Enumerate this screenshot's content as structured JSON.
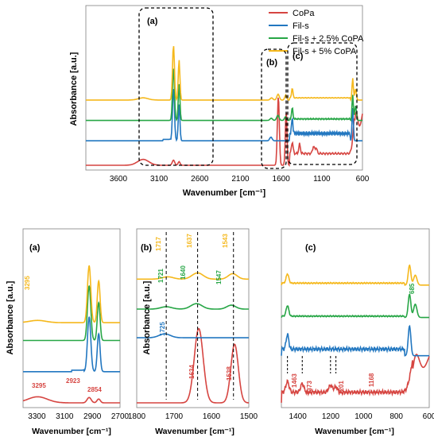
{
  "colors": {
    "CoPa": "#d64541",
    "Fil-s": "#2277c0",
    "Fil-s + 2.5% CoPA": "#27a646",
    "Fil-s + 5% CoPA": "#f5b81c"
  },
  "chart_data": [
    {
      "type": "line",
      "id": "top",
      "xlabel": "Wavenumber [cm⁻¹]",
      "ylabel": "Absorbance [a.u.]",
      "xlim": [
        4000,
        600
      ],
      "xticks": [
        "3600",
        "3100",
        "2600",
        "2100",
        "1600",
        "1100",
        "600"
      ],
      "legend_position": "top-right",
      "series": [
        {
          "name": "CoPa",
          "color": "#d64541",
          "offset": 0
        },
        {
          "name": "Fil-s",
          "color": "#2277c0",
          "offset": 0.3
        },
        {
          "name": "Fil-s + 2.5% CoPA",
          "color": "#27a646",
          "offset": 0.55
        },
        {
          "name": "Fil-s + 5% CoPA",
          "color": "#f5b81c",
          "offset": 0.8
        }
      ],
      "regions": [
        {
          "label": "(a)",
          "x": [
            3400,
            2750
          ]
        },
        {
          "label": "(b)",
          "x": [
            1800,
            1500
          ]
        },
        {
          "label": "(c)",
          "x": [
            1500,
            600
          ]
        }
      ]
    },
    {
      "type": "line",
      "id": "a",
      "title": "(a)",
      "xlabel": "Wavenumber [cm⁻¹]",
      "ylabel": "Absorbance [a.u.]",
      "xlim": [
        3400,
        2700
      ],
      "xticks": [
        "3300",
        "3100",
        "2900",
        "2700"
      ],
      "annotations": [
        {
          "text": "3295",
          "x": 3295,
          "series": "Fil-s + 5% CoPA"
        },
        {
          "text": "3295",
          "x": 3295,
          "series": "CoPa"
        },
        {
          "text": "2923",
          "x": 2923,
          "series": "CoPa"
        },
        {
          "text": "2854",
          "x": 2854,
          "series": "CoPa"
        }
      ]
    },
    {
      "type": "line",
      "id": "b",
      "title": "(b)",
      "xlabel": "Wavenumber [cm⁻¹]",
      "ylabel": "Absorbance [a.u.]",
      "xlim": [
        1800,
        1500
      ],
      "xticks": [
        "1800",
        "1700",
        "1600",
        "1500"
      ],
      "annotations": [
        {
          "text": "1717",
          "x": 1717,
          "series": "Fil-s + 5% CoPA"
        },
        {
          "text": "1637",
          "x": 1637,
          "series": "Fil-s + 5% CoPA"
        },
        {
          "text": "1543",
          "x": 1543,
          "series": "Fil-s + 5% CoPA"
        },
        {
          "text": "1721",
          "x": 1721,
          "series": "Fil-s + 2.5% CoPA"
        },
        {
          "text": "1640",
          "x": 1640,
          "series": "Fil-s + 2.5% CoPA"
        },
        {
          "text": "1547",
          "x": 1547,
          "series": "Fil-s + 2.5% CoPA"
        },
        {
          "text": "1725",
          "x": 1725,
          "series": "Fil-s"
        },
        {
          "text": "1634",
          "x": 1634,
          "series": "CoPa"
        },
        {
          "text": "1538",
          "x": 1538,
          "series": "CoPa"
        }
      ]
    },
    {
      "type": "line",
      "id": "c",
      "title": "(c)",
      "xlabel": "Wavenumber [cm⁻¹]",
      "ylabel": "",
      "xlim": [
        1500,
        600
      ],
      "xticks": [
        "1400",
        "1200",
        "1000",
        "800",
        "600"
      ],
      "annotations": [
        {
          "text": "685",
          "x": 685,
          "series": "Fil-s + 2.5% CoPA"
        },
        {
          "text": "1463",
          "x": 1463,
          "series": "CoPa"
        },
        {
          "text": "1373",
          "x": 1373,
          "series": "CoPa"
        },
        {
          "text": "1201",
          "x": 1201,
          "series": "CoPa"
        },
        {
          "text": "1168",
          "x": 1168,
          "series": "CoPa"
        }
      ]
    }
  ]
}
